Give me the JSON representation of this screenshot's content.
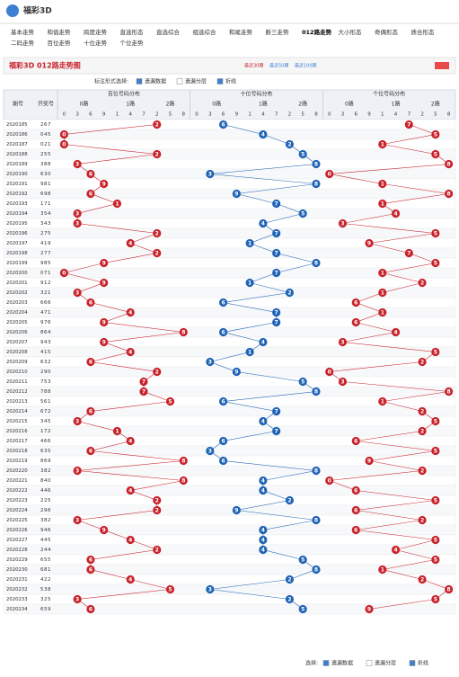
{
  "header": {
    "logo": "福彩3D",
    "nav": [
      "基本走势",
      "和值走势",
      "跨度走势",
      "直选形态",
      "直选综合",
      "组选综合",
      "和尾走势",
      "断三走势",
      "012路走势",
      "大小形态",
      "奇偶形态",
      "质合形态",
      "二码走势",
      "百位走势",
      "十位走势",
      "个位走势"
    ]
  },
  "title": "福彩3D 012路走势图",
  "links": [
    "最近30期",
    "最近50期",
    "最近100期"
  ],
  "options": {
    "label": "标注形式选择:",
    "items": [
      "遗漏数据",
      "遗漏分层",
      "折线"
    ]
  },
  "table": {
    "headers": [
      "期号",
      "开奖号"
    ],
    "groups": [
      "百位号码分布",
      "十位号码分布",
      "个位号码分布"
    ],
    "routes": [
      "0路",
      "1路",
      "2路"
    ],
    "digits": [
      0,
      3,
      6,
      9,
      1,
      4,
      7,
      2,
      5,
      8
    ],
    "colors": [
      "#c8232c",
      "#1f63b5",
      "#c8232c"
    ],
    "rows": [
      {
        "period": "2020185",
        "n": [
          2,
          6,
          7
        ]
      },
      {
        "period": "2020186",
        "n": [
          0,
          4,
          5
        ]
      },
      {
        "period": "2020187",
        "n": [
          0,
          2,
          1
        ]
      },
      {
        "period": "2020188",
        "n": [
          2,
          5,
          5
        ]
      },
      {
        "period": "2020189",
        "n": [
          3,
          8,
          8
        ]
      },
      {
        "period": "2020190",
        "n": [
          6,
          3,
          0
        ]
      },
      {
        "period": "2020191",
        "n": [
          9,
          8,
          1
        ]
      },
      {
        "period": "2020192",
        "n": [
          6,
          9,
          8
        ]
      },
      {
        "period": "2020193",
        "n": [
          1,
          7,
          1
        ]
      },
      {
        "period": "2020194",
        "n": [
          3,
          5,
          4
        ]
      },
      {
        "period": "2020195",
        "n": [
          3,
          4,
          3
        ]
      },
      {
        "period": "2020196",
        "n": [
          2,
          7,
          5
        ]
      },
      {
        "period": "2020197",
        "n": [
          4,
          1,
          9
        ]
      },
      {
        "period": "2020198",
        "n": [
          2,
          7,
          7
        ]
      },
      {
        "period": "2020199",
        "n": [
          9,
          8,
          5
        ]
      },
      {
        "period": "2020200",
        "n": [
          0,
          7,
          1
        ]
      },
      {
        "period": "2020201",
        "n": [
          9,
          1,
          2
        ]
      },
      {
        "period": "2020202",
        "n": [
          3,
          2,
          1
        ]
      },
      {
        "period": "2020203",
        "n": [
          6,
          6,
          6
        ]
      },
      {
        "period": "2020204",
        "n": [
          4,
          7,
          1
        ]
      },
      {
        "period": "2020205",
        "n": [
          9,
          7,
          6
        ]
      },
      {
        "period": "2020206",
        "n": [
          8,
          6,
          4
        ]
      },
      {
        "period": "2020207",
        "n": [
          9,
          4,
          3
        ]
      },
      {
        "period": "2020208",
        "n": [
          4,
          1,
          5
        ]
      },
      {
        "period": "2020209",
        "n": [
          6,
          3,
          2
        ]
      },
      {
        "period": "2020210",
        "n": [
          2,
          9,
          0
        ]
      },
      {
        "period": "2020211",
        "n": [
          7,
          5,
          3
        ]
      },
      {
        "period": "2020212",
        "n": [
          7,
          8,
          8
        ]
      },
      {
        "period": "2020213",
        "n": [
          5,
          6,
          1
        ]
      },
      {
        "period": "2020214",
        "n": [
          6,
          7,
          2
        ]
      },
      {
        "period": "2020215",
        "n": [
          3,
          4,
          5
        ]
      },
      {
        "period": "2020216",
        "n": [
          1,
          7,
          2
        ]
      },
      {
        "period": "2020217",
        "n": [
          4,
          6,
          6
        ]
      },
      {
        "period": "2020218",
        "n": [
          6,
          3,
          5
        ]
      },
      {
        "period": "2020219",
        "n": [
          8,
          6,
          9
        ]
      },
      {
        "period": "2020220",
        "n": [
          3,
          8,
          2
        ]
      },
      {
        "period": "2020221",
        "n": [
          8,
          4,
          0
        ]
      },
      {
        "period": "2020222",
        "n": [
          4,
          4,
          6
        ]
      },
      {
        "period": "2020223",
        "n": [
          2,
          2,
          5
        ]
      },
      {
        "period": "2020224",
        "n": [
          2,
          9,
          6
        ]
      },
      {
        "period": "2020225",
        "n": [
          3,
          8,
          2
        ]
      },
      {
        "period": "2020226",
        "n": [
          9,
          4,
          6
        ]
      },
      {
        "period": "2020227",
        "n": [
          4,
          4,
          5
        ]
      },
      {
        "period": "2020228",
        "n": [
          2,
          4,
          4
        ]
      },
      {
        "period": "2020229",
        "n": [
          6,
          5,
          5
        ]
      },
      {
        "period": "2020230",
        "n": [
          6,
          8,
          1
        ]
      },
      {
        "period": "2020231",
        "n": [
          4,
          2,
          2
        ]
      },
      {
        "period": "2020232",
        "n": [
          5,
          3,
          8
        ]
      },
      {
        "period": "2020233",
        "n": [
          3,
          2,
          5
        ]
      },
      {
        "period": "2020234",
        "n": [
          6,
          5,
          9
        ]
      }
    ]
  },
  "footer": {
    "label": "选择:",
    "items": [
      "遗漏数据",
      "遗漏分层",
      "折线"
    ]
  }
}
